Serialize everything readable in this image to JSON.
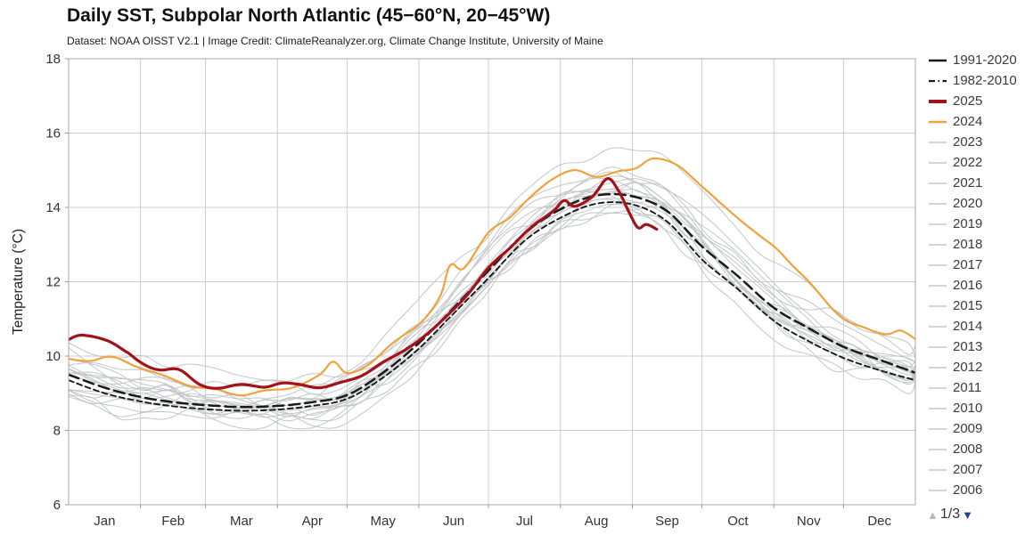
{
  "chart_data": {
    "type": "line",
    "title": "Daily SST, Subpolar North Atlantic (45−60°N, 20−45°W)",
    "subtitle": "Dataset: NOAA OISST V2.1 | Image Credit: ClimateReanalyzer.org, Climate Change Institute, University of Maine",
    "ylabel": "Temperature (°C)",
    "ylim": [
      6,
      18
    ],
    "y_ticks": [
      18,
      16,
      14,
      12,
      10,
      8,
      6
    ],
    "x_labels": [
      "Jan",
      "Feb",
      "Mar",
      "Apr",
      "May",
      "Jun",
      "Jul",
      "Aug",
      "Sep",
      "Oct",
      "Nov",
      "Dec"
    ],
    "x_unit": "months (0 = Jan 1, 12 = Dec 31, day-of-year scaled)",
    "grid": true,
    "colors": {
      "grid": "#cdcdcd",
      "border": "#a9a9a9",
      "tick_text": "#333333",
      "gray_year": "#c3c6c9"
    },
    "series": [
      {
        "name": "1991-2020",
        "role": "climatology",
        "color": "#1a1a1a",
        "width": 2.5,
        "dash": "12 6",
        "points": [
          [
            0,
            9.5
          ],
          [
            0.5,
            9.15
          ],
          [
            1,
            8.9
          ],
          [
            1.5,
            8.76
          ],
          [
            2,
            8.68
          ],
          [
            2.5,
            8.63
          ],
          [
            3,
            8.66
          ],
          [
            3.5,
            8.76
          ],
          [
            4,
            8.95
          ],
          [
            4.5,
            9.55
          ],
          [
            5,
            10.35
          ],
          [
            5.5,
            11.3
          ],
          [
            6,
            12.3
          ],
          [
            6.5,
            13.3
          ],
          [
            7,
            13.95
          ],
          [
            7.5,
            14.32
          ],
          [
            8,
            14.3
          ],
          [
            8.5,
            13.9
          ],
          [
            9,
            12.95
          ],
          [
            9.5,
            12.15
          ],
          [
            10,
            11.3
          ],
          [
            10.5,
            10.75
          ],
          [
            11,
            10.25
          ],
          [
            11.5,
            9.9
          ],
          [
            12,
            9.55
          ]
        ]
      },
      {
        "name": "1982-2010",
        "role": "climatology",
        "color": "#1a1a1a",
        "width": 1.9,
        "dash": "6 4",
        "points": [
          [
            0,
            9.35
          ],
          [
            0.5,
            9.0
          ],
          [
            1,
            8.78
          ],
          [
            1.5,
            8.65
          ],
          [
            2,
            8.57
          ],
          [
            2.5,
            8.53
          ],
          [
            3,
            8.56
          ],
          [
            3.5,
            8.66
          ],
          [
            4,
            8.85
          ],
          [
            4.5,
            9.42
          ],
          [
            5,
            10.2
          ],
          [
            5.5,
            11.15
          ],
          [
            6,
            12.1
          ],
          [
            6.5,
            13.1
          ],
          [
            7,
            13.72
          ],
          [
            7.5,
            14.1
          ],
          [
            8,
            14.08
          ],
          [
            8.5,
            13.62
          ],
          [
            9,
            12.6
          ],
          [
            9.5,
            11.8
          ],
          [
            10,
            10.95
          ],
          [
            10.5,
            10.4
          ],
          [
            11,
            9.95
          ],
          [
            11.5,
            9.62
          ],
          [
            12,
            9.35
          ]
        ]
      },
      {
        "name": "2024",
        "role": "year",
        "color": "#f0a23c",
        "width": 2.2,
        "dash": "",
        "points": [
          [
            0,
            9.95
          ],
          [
            0.3,
            9.9
          ],
          [
            0.6,
            9.95
          ],
          [
            1.0,
            9.65
          ],
          [
            1.4,
            9.45
          ],
          [
            1.8,
            9.2
          ],
          [
            2.2,
            9.05
          ],
          [
            2.5,
            8.97
          ],
          [
            2.8,
            9.1
          ],
          [
            3.2,
            9.15
          ],
          [
            3.6,
            9.5
          ],
          [
            3.8,
            9.85
          ],
          [
            4.0,
            9.55
          ],
          [
            4.3,
            9.8
          ],
          [
            4.6,
            10.3
          ],
          [
            5.0,
            10.85
          ],
          [
            5.3,
            11.6
          ],
          [
            5.45,
            12.45
          ],
          [
            5.65,
            12.35
          ],
          [
            6.0,
            13.3
          ],
          [
            6.3,
            13.7
          ],
          [
            6.6,
            14.3
          ],
          [
            6.9,
            14.8
          ],
          [
            7.2,
            15.0
          ],
          [
            7.5,
            14.85
          ],
          [
            7.8,
            14.95
          ],
          [
            8.05,
            15.05
          ],
          [
            8.3,
            15.35
          ],
          [
            8.6,
            15.2
          ],
          [
            9.0,
            14.6
          ],
          [
            9.3,
            14.0
          ],
          [
            9.6,
            13.5
          ],
          [
            10.0,
            13.0
          ],
          [
            10.3,
            12.4
          ],
          [
            10.6,
            11.8
          ],
          [
            11.0,
            11.0
          ],
          [
            11.3,
            10.75
          ],
          [
            11.6,
            10.55
          ],
          [
            11.8,
            10.65
          ],
          [
            12,
            10.45
          ]
        ]
      },
      {
        "name": "2025",
        "role": "year",
        "color": "#a31218",
        "width": 3.2,
        "dash": "",
        "points": [
          [
            0,
            10.4
          ],
          [
            0.2,
            10.55
          ],
          [
            0.55,
            10.45
          ],
          [
            0.8,
            10.1
          ],
          [
            1.0,
            9.8
          ],
          [
            1.3,
            9.62
          ],
          [
            1.6,
            9.6
          ],
          [
            1.9,
            9.25
          ],
          [
            2.2,
            9.15
          ],
          [
            2.5,
            9.2
          ],
          [
            2.8,
            9.15
          ],
          [
            3.05,
            9.3
          ],
          [
            3.3,
            9.25
          ],
          [
            3.6,
            9.15
          ],
          [
            3.9,
            9.25
          ],
          [
            4.2,
            9.45
          ],
          [
            4.5,
            9.8
          ],
          [
            4.8,
            10.2
          ],
          [
            5.1,
            10.6
          ],
          [
            5.4,
            11.1
          ],
          [
            5.7,
            11.7
          ],
          [
            6.0,
            12.35
          ],
          [
            6.3,
            12.9
          ],
          [
            6.6,
            13.45
          ],
          [
            6.9,
            13.9
          ],
          [
            7.05,
            14.2
          ],
          [
            7.2,
            14.05
          ],
          [
            7.45,
            14.3
          ],
          [
            7.65,
            14.75
          ],
          [
            7.8,
            14.45
          ],
          [
            7.95,
            13.9
          ],
          [
            8.08,
            13.5
          ],
          [
            8.2,
            13.58
          ],
          [
            8.35,
            13.42
          ]
        ]
      }
    ],
    "gray_years": {
      "color": "#c3c6c9",
      "width": 1,
      "note": "approximate mean offset (°C) vs 1991-2020 climatology",
      "years": [
        {
          "year": 2006,
          "offset": 0.1
        },
        {
          "year": 2007,
          "offset": -0.25
        },
        {
          "year": 2008,
          "offset": -0.55
        },
        {
          "year": 2009,
          "offset": -0.4
        },
        {
          "year": 2010,
          "offset": 0.65
        },
        {
          "year": 2011,
          "offset": -0.2
        },
        {
          "year": 2012,
          "offset": -0.35
        },
        {
          "year": 2013,
          "offset": -0.3
        },
        {
          "year": 2014,
          "offset": 0.05
        },
        {
          "year": 2015,
          "offset": -0.5
        },
        {
          "year": 2016,
          "offset": 0.4
        },
        {
          "year": 2017,
          "offset": 0.15
        },
        {
          "year": 2018,
          "offset": -0.1
        },
        {
          "year": 2019,
          "offset": 0.25
        },
        {
          "year": 2020,
          "offset": 0.55
        },
        {
          "year": 2021,
          "offset": 0.45
        },
        {
          "year": 2022,
          "offset": 0.6
        },
        {
          "year": 2023,
          "offset": 1.3
        }
      ]
    }
  },
  "legend": {
    "entries": [
      {
        "label": "1991-2020",
        "color": "#1a1a1a",
        "width": 2.6,
        "dash": ""
      },
      {
        "label": "1982-2010",
        "color": "#1a1a1a",
        "width": 2.2,
        "dash": "7 3.5 1.5 3.5"
      },
      {
        "label": "2025",
        "color": "#a31218",
        "width": 4,
        "dash": ""
      },
      {
        "label": "2024",
        "color": "#f0a23c",
        "width": 2.6,
        "dash": ""
      },
      {
        "label": "2023",
        "color": "#cfcfcf",
        "width": 1.8,
        "dash": ""
      },
      {
        "label": "2022",
        "color": "#cfcfcf",
        "width": 1.8,
        "dash": ""
      },
      {
        "label": "2021",
        "color": "#cfcfcf",
        "width": 1.8,
        "dash": ""
      },
      {
        "label": "2020",
        "color": "#cfcfcf",
        "width": 1.8,
        "dash": ""
      },
      {
        "label": "2019",
        "color": "#cfcfcf",
        "width": 1.8,
        "dash": ""
      },
      {
        "label": "2018",
        "color": "#cfcfcf",
        "width": 1.8,
        "dash": ""
      },
      {
        "label": "2017",
        "color": "#cfcfcf",
        "width": 1.8,
        "dash": ""
      },
      {
        "label": "2016",
        "color": "#cfcfcf",
        "width": 1.8,
        "dash": ""
      },
      {
        "label": "2015",
        "color": "#cfcfcf",
        "width": 1.8,
        "dash": ""
      },
      {
        "label": "2014",
        "color": "#cfcfcf",
        "width": 1.8,
        "dash": ""
      },
      {
        "label": "2013",
        "color": "#cfcfcf",
        "width": 1.8,
        "dash": ""
      },
      {
        "label": "2012",
        "color": "#cfcfcf",
        "width": 1.8,
        "dash": ""
      },
      {
        "label": "2011",
        "color": "#cfcfcf",
        "width": 1.8,
        "dash": ""
      },
      {
        "label": "2010",
        "color": "#cfcfcf",
        "width": 1.8,
        "dash": ""
      },
      {
        "label": "2009",
        "color": "#cfcfcf",
        "width": 1.8,
        "dash": ""
      },
      {
        "label": "2008",
        "color": "#cfcfcf",
        "width": 1.8,
        "dash": ""
      },
      {
        "label": "2007",
        "color": "#cfcfcf",
        "width": 1.8,
        "dash": ""
      },
      {
        "label": "2006",
        "color": "#cfcfcf",
        "width": 1.8,
        "dash": ""
      }
    ],
    "pager": {
      "up_icon": "▲",
      "label": "1/3",
      "down_icon": "▼",
      "up_color": "#b9b9b9",
      "down_color": "#1b4298"
    }
  }
}
